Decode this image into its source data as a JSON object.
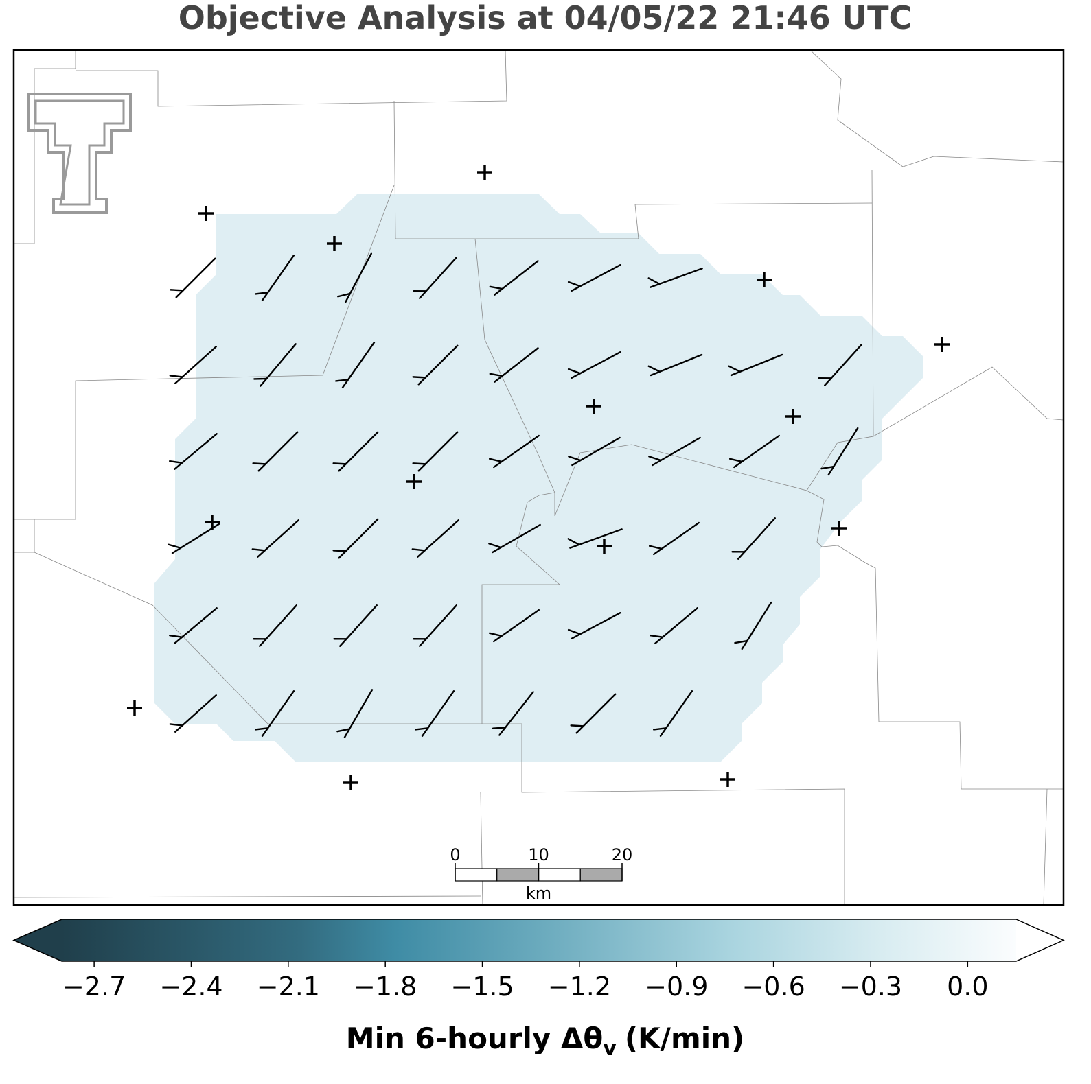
{
  "title": "Objective Analysis at 04/05/22 21:46 UTC",
  "scale_bar": {
    "ticks": [
      0,
      10,
      20
    ],
    "unit": "km"
  },
  "colorbar": {
    "label": [
      "Min 6-hourly Δθ",
      "v",
      "(K/min)"
    ],
    "clim": [
      -2.8,
      0.15
    ],
    "ticks": [
      {
        "value": -2.7,
        "label": "−2.7"
      },
      {
        "value": -2.4,
        "label": "−2.4"
      },
      {
        "value": -2.1,
        "label": "−2.1"
      },
      {
        "value": -1.8,
        "label": "−1.8"
      },
      {
        "value": -1.5,
        "label": "−1.5"
      },
      {
        "value": -1.2,
        "label": "−1.2"
      },
      {
        "value": -0.9,
        "label": "−0.9"
      },
      {
        "value": -0.6,
        "label": "−0.6"
      },
      {
        "value": -0.3,
        "label": "−0.3"
      },
      {
        "value": 0,
        "label": "0.0"
      }
    ]
  }
}
